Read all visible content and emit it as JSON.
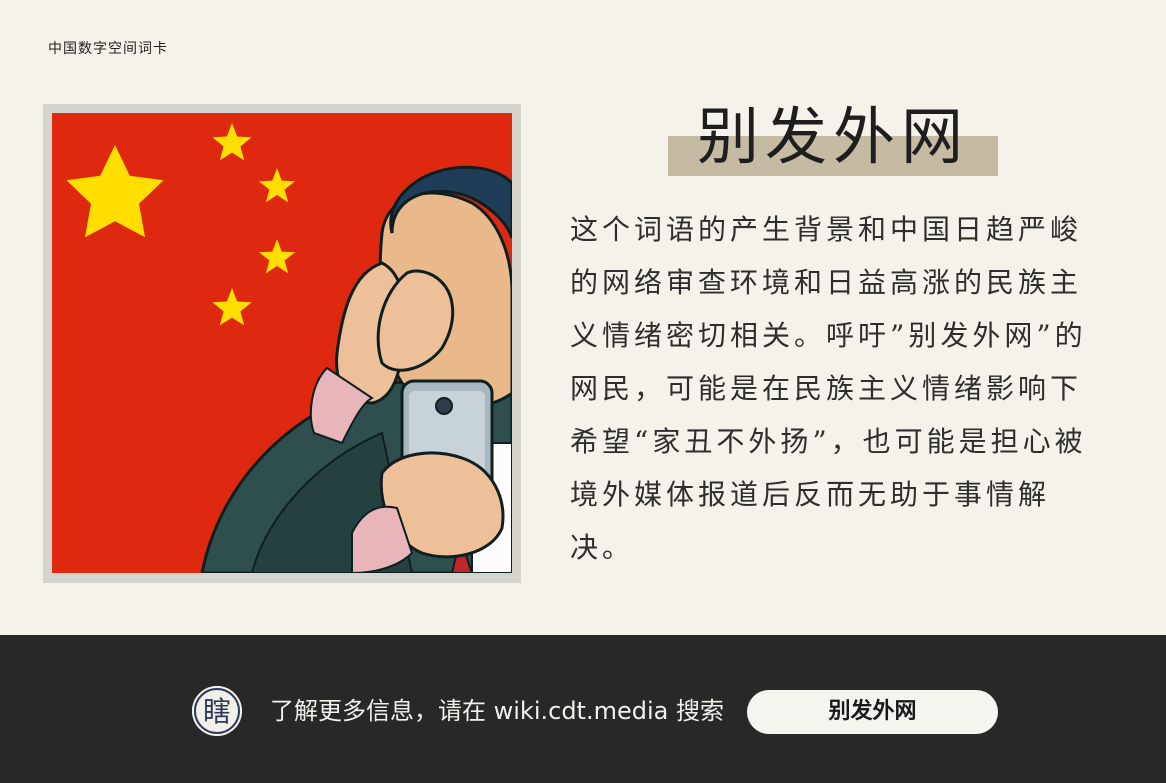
{
  "header": {
    "label": "中国数字空间词卡"
  },
  "card": {
    "title": "别发外网",
    "description": "这个词语的产生背景和中国日趋严峻的网络审查环境和日益高涨的民族主义情绪密切相关。呼吁”别发外网”的网民，可能是在民族主义情绪影响下希望“家丑不外扬”，也可能是担心被境外媒体报道后反而无助于事情解决。"
  },
  "footer": {
    "logo_glyph": "瞎",
    "prompt": "了解更多信息，请在 wiki.cdt.media 搜索",
    "search_term": "别发外网"
  },
  "colors": {
    "flag_red": "#de2910",
    "star_yellow": "#ffde00",
    "title_band": "#c5bba3",
    "background": "#f5f2eb",
    "footer_bg": "#282828",
    "logo_navy": "#2b3a5e"
  },
  "icons": {
    "illustration": "man-covering-eyes-holding-phone-illustration",
    "logo": "cdt-logo-icon"
  }
}
